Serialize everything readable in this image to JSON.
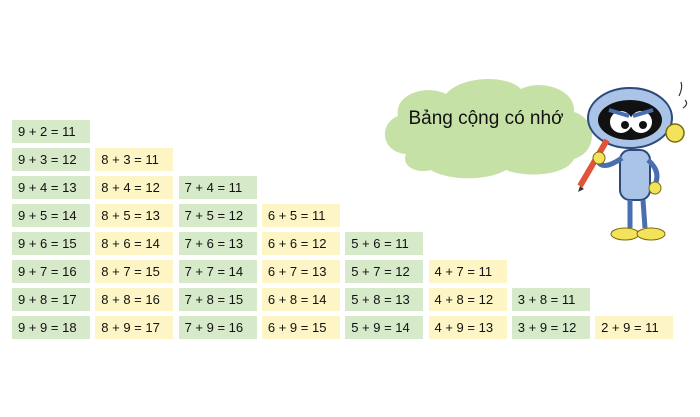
{
  "title": "Bảng cộng có nhớ",
  "colors": {
    "green": "#d6e9c9",
    "yellow": "#fdf5c6",
    "cloud": "#c6e1a6"
  },
  "columns": [
    [
      "9 + 2 = 11",
      "9 + 3 = 12",
      "9 + 4 = 13",
      "9 + 5 = 14",
      "9 + 6 = 15",
      "9 + 7 = 16",
      "9 + 8 = 17",
      "9 + 9 = 18"
    ],
    [
      "8 + 3 = 11",
      "8 + 4 = 12",
      "8 + 5 = 13",
      "8 + 6 = 14",
      "8 + 7 = 15",
      "8 + 8 = 16",
      "8 + 9 = 17"
    ],
    [
      "7 + 4 = 11",
      "7 + 5 = 12",
      "7 + 6 = 13",
      "7 + 7 = 14",
      "7 + 8 = 15",
      "7 + 9 = 16"
    ],
    [
      "6 + 5 = 11",
      "6 + 6 = 12",
      "6 + 7 = 13",
      "6 + 8 = 14",
      "6 + 9 = 15"
    ],
    [
      "5 + 6 = 11",
      "5 + 7 = 12",
      "5 + 8 = 13",
      "5 + 9 = 14"
    ],
    [
      "4 + 7 = 11",
      "4 + 8 = 12",
      "4 + 9 = 13"
    ],
    [
      "3 + 8 = 11",
      "3 + 9 = 12"
    ],
    [
      "2 + 9 = 11"
    ]
  ],
  "illustration": "robot-with-pencil"
}
